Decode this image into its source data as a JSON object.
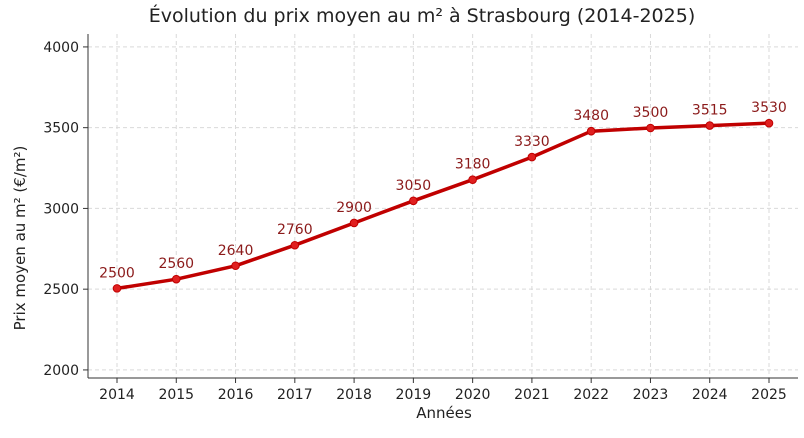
{
  "chart_data": {
    "type": "line",
    "title": "Évolution du prix moyen au m² à Strasbourg (2014-2025)",
    "xlabel": "Années",
    "ylabel": "Prix moyen au m² (€/m²)",
    "categories": [
      "2014",
      "2015",
      "2016",
      "2017",
      "2018",
      "2019",
      "2020",
      "2021",
      "2022",
      "2023",
      "2024",
      "2025"
    ],
    "series": [
      {
        "values": [
          2500,
          2560,
          2640,
          2760,
          2900,
          3050,
          3180,
          3330,
          3480,
          3500,
          3515,
          3530
        ],
        "point_values": [
          2505,
          2562,
          2645,
          2772,
          2910,
          3047,
          3178,
          3318,
          3478,
          3498,
          3513,
          3528
        ]
      }
    ],
    "ylim": [
      1950,
      4080
    ],
    "yticks": [
      2000,
      2500,
      3000,
      3500,
      4000
    ],
    "grid": true,
    "line_color": "#c00000",
    "label_color": "#8b1a1a"
  }
}
